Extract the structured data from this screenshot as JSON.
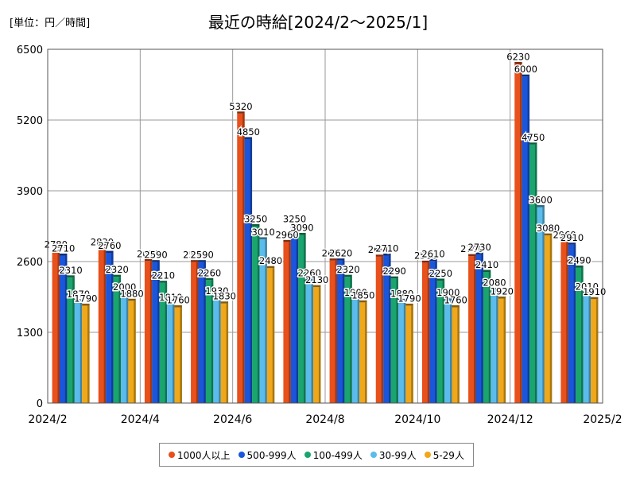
{
  "chart_data": {
    "type": "bar",
    "title": "最近の時給[2024/2〜2025/1]",
    "unit_label": "[単位：円／時間]",
    "categories": [
      "2024/2",
      "2024/3",
      "2024/4",
      "2024/5",
      "2024/6",
      "2024/7",
      "2024/8",
      "2024/9",
      "2024/10",
      "2024/11",
      "2024/12",
      "2025/1"
    ],
    "x_tick_labels": [
      "2024/2",
      "2024/4",
      "2024/6",
      "2024/8",
      "2024/10",
      "2024/12",
      "2025/2"
    ],
    "ylim": [
      0,
      6500
    ],
    "y_ticks": [
      0,
      1300,
      2600,
      3900,
      5200,
      6500
    ],
    "grid": true,
    "legend_position": "bottom",
    "series": [
      {
        "name": "1000人以上",
        "color": "#e8501c",
        "values": [
          2780,
          2830,
          2610,
          2590,
          5320,
          2960,
          2620,
          2690,
          2580,
          2700,
          6230,
          2960
        ]
      },
      {
        "name": "500-999人",
        "color": "#1a56db",
        "values": [
          2710,
          2760,
          2590,
          2590,
          4850,
          3250,
          2620,
          2710,
          2610,
          2730,
          6000,
          2910
        ]
      },
      {
        "name": "100-499人",
        "color": "#1aa56e",
        "values": [
          2310,
          2320,
          2210,
          2260,
          3250,
          3090,
          2320,
          2290,
          2250,
          2410,
          4750,
          2490
        ]
      },
      {
        "name": "30-99人",
        "color": "#5bbcec",
        "values": [
          1870,
          2000,
          1810,
          1930,
          3010,
          2260,
          1900,
          1880,
          1900,
          2080,
          3600,
          2010
        ]
      },
      {
        "name": "5-29人",
        "color": "#f0a81a",
        "values": [
          1790,
          1880,
          1760,
          1830,
          2480,
          2130,
          1850,
          1790,
          1760,
          1920,
          3080,
          1910
        ]
      }
    ]
  }
}
